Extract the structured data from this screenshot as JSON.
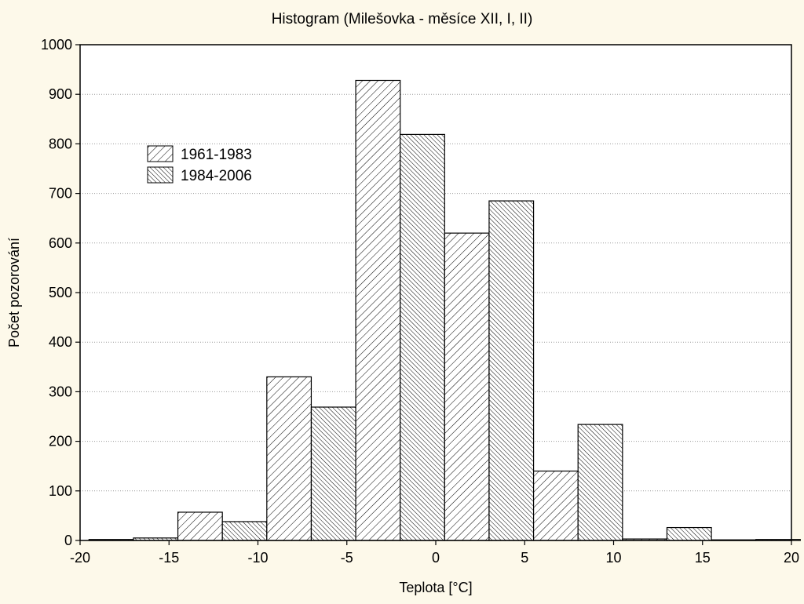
{
  "chart_data": {
    "type": "bar",
    "title": "Histogram (Milešovka - měsíce XII, I, II)",
    "xlabel": "Teplota [°C]",
    "ylabel": "Počet pozorování",
    "xlim": [
      -20,
      20
    ],
    "ylim": [
      0,
      1000
    ],
    "xticks": [
      -20,
      -15,
      -10,
      -5,
      0,
      5,
      10,
      15,
      20
    ],
    "yticks": [
      0,
      100,
      200,
      300,
      400,
      500,
      600,
      700,
      800,
      900,
      1000
    ],
    "grid": "horizontal dotted",
    "legend_position": "upper-left",
    "bin_width": 5,
    "bin_starts": [
      -19.5,
      -14.5,
      -9.5,
      -4.5,
      0.5,
      5.5,
      10.5,
      15.5
    ],
    "series": [
      {
        "name": "1961-1983",
        "pattern": "hatch-light",
        "values": [
          2,
          57,
          330,
          928,
          620,
          140,
          3,
          0
        ]
      },
      {
        "name": "1984-2006",
        "pattern": "hatch-dense",
        "values": [
          5,
          38,
          269,
          819,
          685,
          234,
          26,
          2
        ]
      }
    ]
  }
}
